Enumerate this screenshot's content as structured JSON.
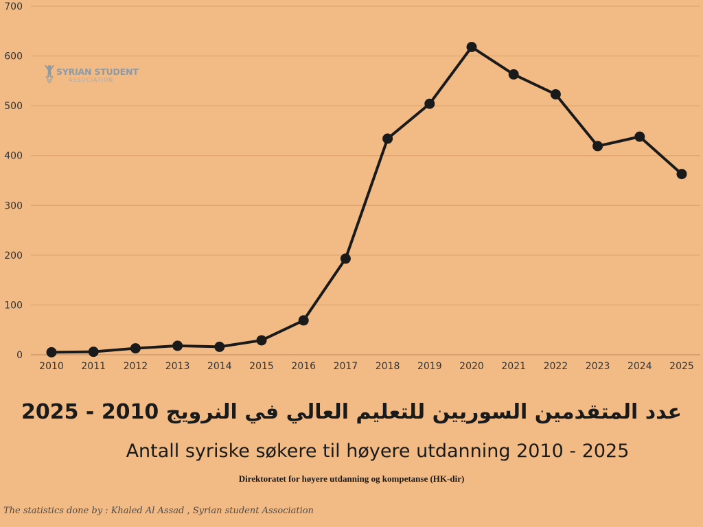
{
  "chart_data": {
    "type": "line",
    "categories": [
      "2010",
      "2011",
      "2012",
      "2013",
      "2014",
      "2015",
      "2016",
      "2017",
      "2018",
      "2019",
      "2020",
      "2021",
      "2022",
      "2023",
      "2024",
      "2025"
    ],
    "values": [
      5,
      6,
      13,
      18,
      16,
      29,
      69,
      193,
      434,
      504,
      618,
      563,
      523,
      419,
      438,
      363
    ],
    "ylim": [
      0,
      700
    ],
    "yticks": [
      0,
      100,
      200,
      300,
      400,
      500,
      600,
      700
    ],
    "grid": true,
    "line_color": "#1a1a1a",
    "grid_color": "#d9a066",
    "background": "#f2bb86",
    "title": "عدد المتقدمين السوريين للتعليم العالي في النرويج 2010 - 2025",
    "subtitle": "Antall syriske søkere til høyere utdanning 2010 - 2025",
    "xlabel": "",
    "ylabel": ""
  },
  "logo": {
    "icon": "person-figure-icon",
    "text": "SYRIAN STUDENT",
    "sub": "ASSOCIATION"
  },
  "source": "Direktoratet for høyere utdanning og kompetanse (HK-dir)",
  "credit": "The statistics done by : Khaled Al Assad , Syrian student Association"
}
